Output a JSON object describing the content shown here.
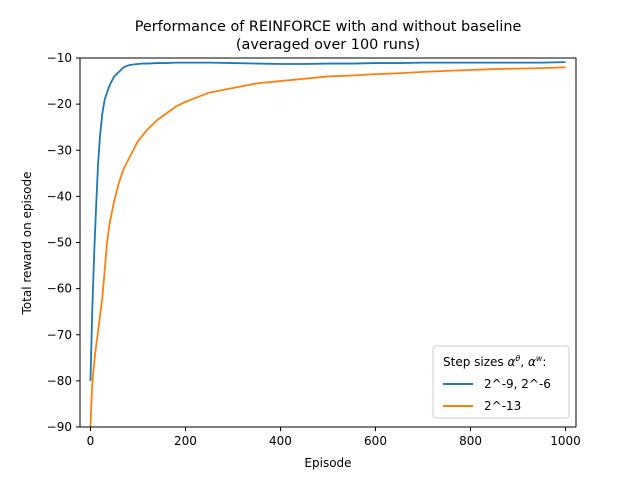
{
  "chart_data": {
    "type": "line",
    "title_line1": "Performance of REINFORCE with and without baseline",
    "title_line2": "(averaged over 100 runs)",
    "xlabel": "Episode",
    "ylabel": "Total reward on episode",
    "xlim": [
      -22,
      1022
    ],
    "ylim": [
      -90,
      -10
    ],
    "x_ticks": [
      0,
      200,
      400,
      600,
      800,
      1000
    ],
    "y_ticks": [
      -90,
      -80,
      -70,
      -60,
      -50,
      -40,
      -30,
      -20,
      -10
    ],
    "x_tick_labels": [
      "0",
      "200",
      "400",
      "600",
      "800",
      "1000"
    ],
    "y_tick_labels": [
      "−90",
      "−80",
      "−70",
      "−60",
      "−50",
      "−40",
      "−30",
      "−20",
      "−10"
    ],
    "grid": false,
    "legend": {
      "title_prefix": "Step sizes ",
      "title_math": "αθ, αw:",
      "placement": "lower-right"
    },
    "series": [
      {
        "name": "2^-9, 2^-6",
        "color": "#1f77b4",
        "x": [
          0,
          4,
          8,
          12,
          16,
          20,
          25,
          30,
          35,
          40,
          45,
          50,
          55,
          60,
          65,
          70,
          75,
          80,
          85,
          90,
          100,
          110,
          120,
          140,
          160,
          180,
          200,
          250,
          300,
          350,
          400,
          450,
          500,
          550,
          600,
          650,
          700,
          750,
          800,
          850,
          900,
          950,
          1000
        ],
        "y": [
          -80,
          -64,
          -52,
          -42,
          -33,
          -27,
          -22,
          -19,
          -17.5,
          -16,
          -15,
          -14,
          -13.5,
          -13,
          -12.5,
          -12,
          -11.8,
          -11.6,
          -11.5,
          -11.4,
          -11.3,
          -11.2,
          -11.2,
          -11.1,
          -11.1,
          -11,
          -11,
          -11,
          -11.1,
          -11.2,
          -11.3,
          -11.3,
          -11.2,
          -11.2,
          -11.1,
          -11.1,
          -11,
          -11,
          -11,
          -11,
          -11,
          -11,
          -10.9
        ]
      },
      {
        "name": "2^-13",
        "color": "#ff7f0e",
        "x": [
          0,
          3,
          6,
          10,
          15,
          20,
          25,
          30,
          35,
          40,
          50,
          60,
          70,
          80,
          90,
          100,
          120,
          140,
          160,
          180,
          200,
          250,
          300,
          350,
          400,
          450,
          500,
          550,
          600,
          650,
          700,
          750,
          800,
          850,
          900,
          950,
          1000
        ],
        "y": [
          -90,
          -82,
          -78,
          -74,
          -70,
          -66,
          -62,
          -56,
          -50,
          -46,
          -41,
          -37,
          -34,
          -32,
          -30,
          -28,
          -25.5,
          -23.5,
          -22,
          -20.5,
          -19.5,
          -17.5,
          -16.5,
          -15.5,
          -15,
          -14.5,
          -14,
          -13.8,
          -13.5,
          -13.3,
          -13,
          -12.8,
          -12.6,
          -12.4,
          -12.3,
          -12.2,
          -12
        ]
      }
    ]
  }
}
